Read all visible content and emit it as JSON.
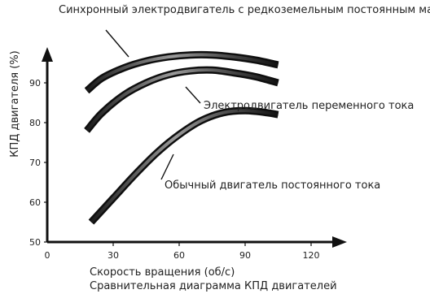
{
  "chart_data": {
    "type": "line",
    "caption": "Сравнительная диаграмма КПД двигателей",
    "xlabel": "Скорость вращения (об/с)",
    "ylabel": "КПД двигателя (%)",
    "xlim": [
      0,
      130
    ],
    "ylim": [
      50,
      100
    ],
    "x_ticks": [
      0,
      30,
      60,
      90,
      120
    ],
    "y_ticks": [
      50,
      60,
      70,
      80,
      90
    ],
    "grid": false,
    "legend": "none",
    "series": [
      {
        "name": "Синхронный электродвигатель с редкоземельным постоянным магнитом",
        "x": [
          18,
          25,
          35,
          45,
          55,
          65,
          75,
          85,
          95,
          105
        ],
        "y": [
          88,
          91.2,
          93.8,
          95.5,
          96.5,
          97,
          97,
          96.5,
          95.7,
          94.5
        ],
        "color": "#333333"
      },
      {
        "name": "Электродвигатель переменного тока",
        "x": [
          18,
          25,
          35,
          45,
          55,
          65,
          75,
          85,
          95,
          105
        ],
        "y": [
          78,
          82.5,
          87,
          90,
          92,
          93,
          93.2,
          92.5,
          91.5,
          90
        ],
        "color": "#333333"
      },
      {
        "name": "Обычный двигатель постоянного тока",
        "x": [
          20,
          30,
          40,
          50,
          60,
          70,
          80,
          90,
          100,
          105
        ],
        "y": [
          55,
          61,
          67,
          72.5,
          77,
          80.5,
          82.5,
          83,
          82.5,
          82
        ],
        "color": "#222222"
      }
    ]
  }
}
